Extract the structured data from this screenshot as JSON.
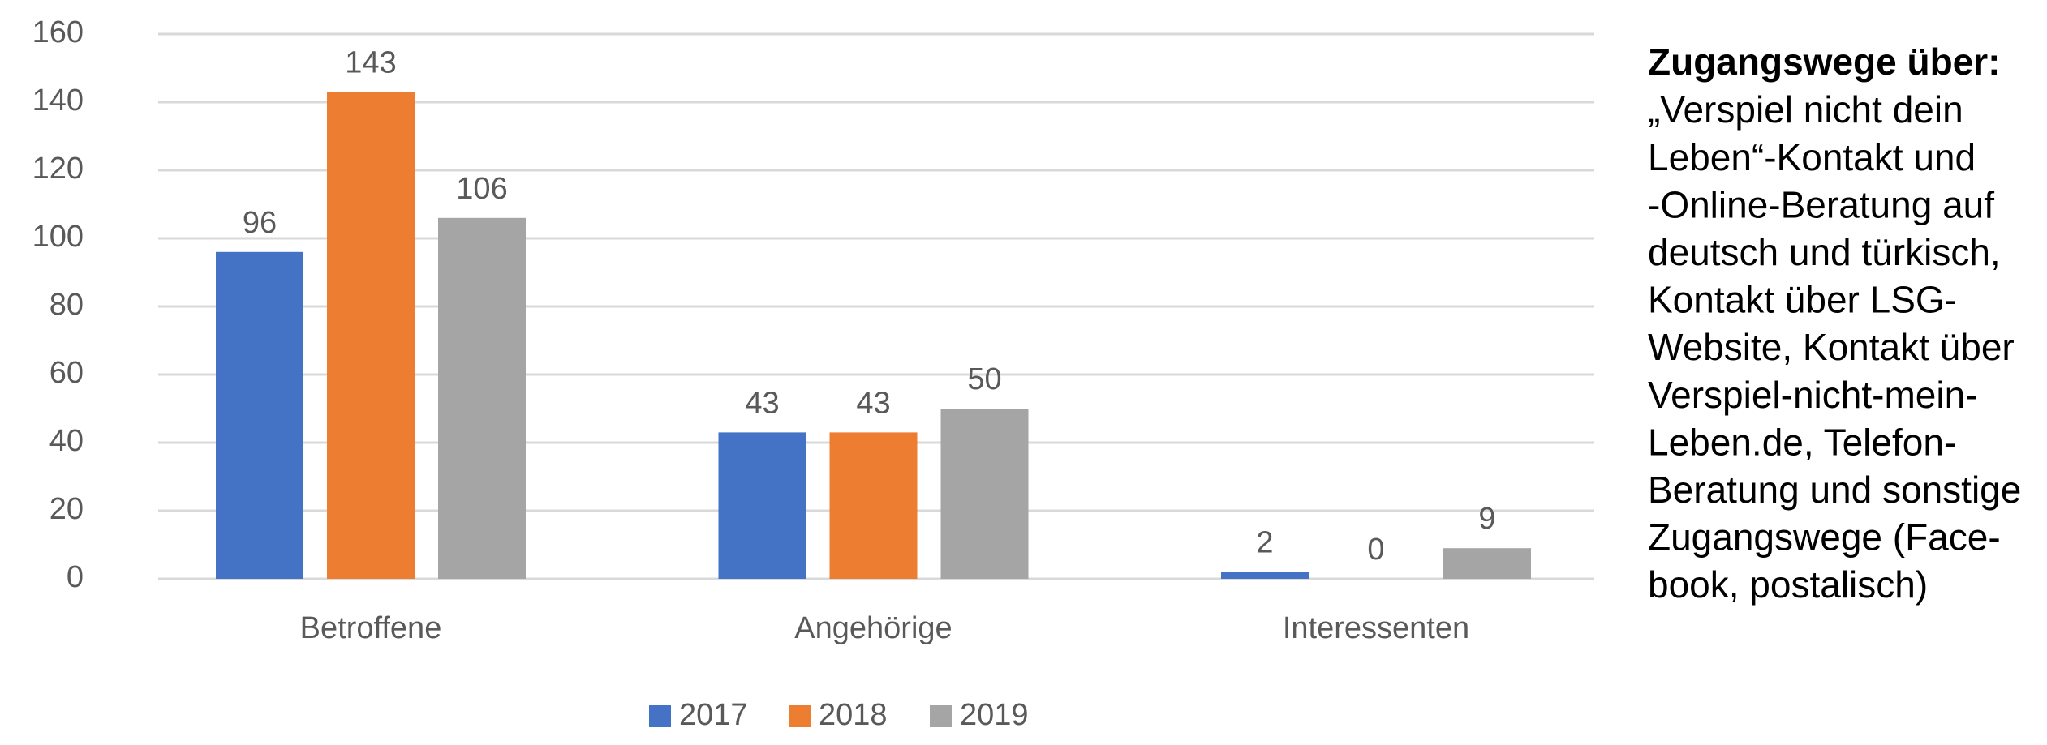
{
  "chart_data": {
    "type": "bar",
    "categories": [
      "Betroffene",
      "Angehörige",
      "Interessenten"
    ],
    "series": [
      {
        "name": "2017",
        "color": "#4472c4",
        "values": [
          96,
          43,
          2
        ]
      },
      {
        "name": "2018",
        "color": "#ed7d31",
        "values": [
          143,
          43,
          0
        ]
      },
      {
        "name": "2019",
        "color": "#a5a5a5",
        "values": [
          106,
          50,
          9
        ]
      }
    ],
    "ylim": [
      0,
      160
    ],
    "yticks": [
      0,
      20,
      40,
      60,
      80,
      100,
      120,
      140,
      160
    ],
    "grid": true,
    "legend": "bottom",
    "annotation": {
      "heading": "Zugangswege über:",
      "lines": [
        "„Verspiel nicht dein",
        "Leben“-Kontakt und",
        "-Online-Beratung auf",
        "deutsch und türkisch,",
        "Kontakt über LSG-",
        "Website, Kontakt über",
        "Verspiel-nicht-mein-",
        "Leben.de, Telefon-",
        "Beratung und sonstige",
        "Zugangswege (Face-",
        "book, postalisch)"
      ]
    }
  }
}
